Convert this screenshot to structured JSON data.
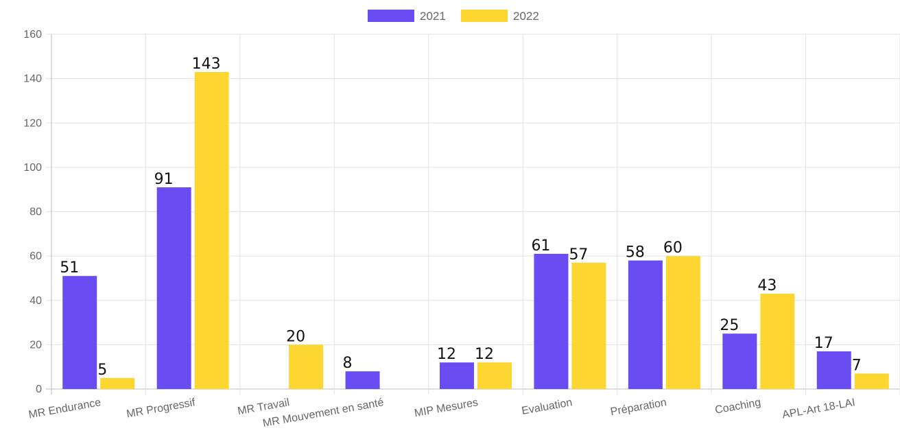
{
  "chart_data": {
    "type": "bar",
    "categories": [
      "MR Endurance",
      "MR Progressif",
      "MR Travail",
      "MR Mouvement en santé",
      "MIP Mesures",
      "Evaluation",
      "Préparation",
      "Coaching",
      "APL-Art 18-LAI"
    ],
    "series": [
      {
        "name": "2021",
        "color": "#6a4df2",
        "values": [
          51,
          91,
          null,
          8,
          12,
          61,
          58,
          25,
          17
        ]
      },
      {
        "name": "2022",
        "color": "#fed631",
        "values": [
          5,
          143,
          20,
          null,
          12,
          57,
          60,
          43,
          7
        ]
      }
    ],
    "yticks": [
      0,
      20,
      40,
      60,
      80,
      100,
      120,
      140,
      160
    ],
    "ylim": [
      0,
      160
    ],
    "legend_position": "top-center",
    "grid": true,
    "data_labels": true
  }
}
